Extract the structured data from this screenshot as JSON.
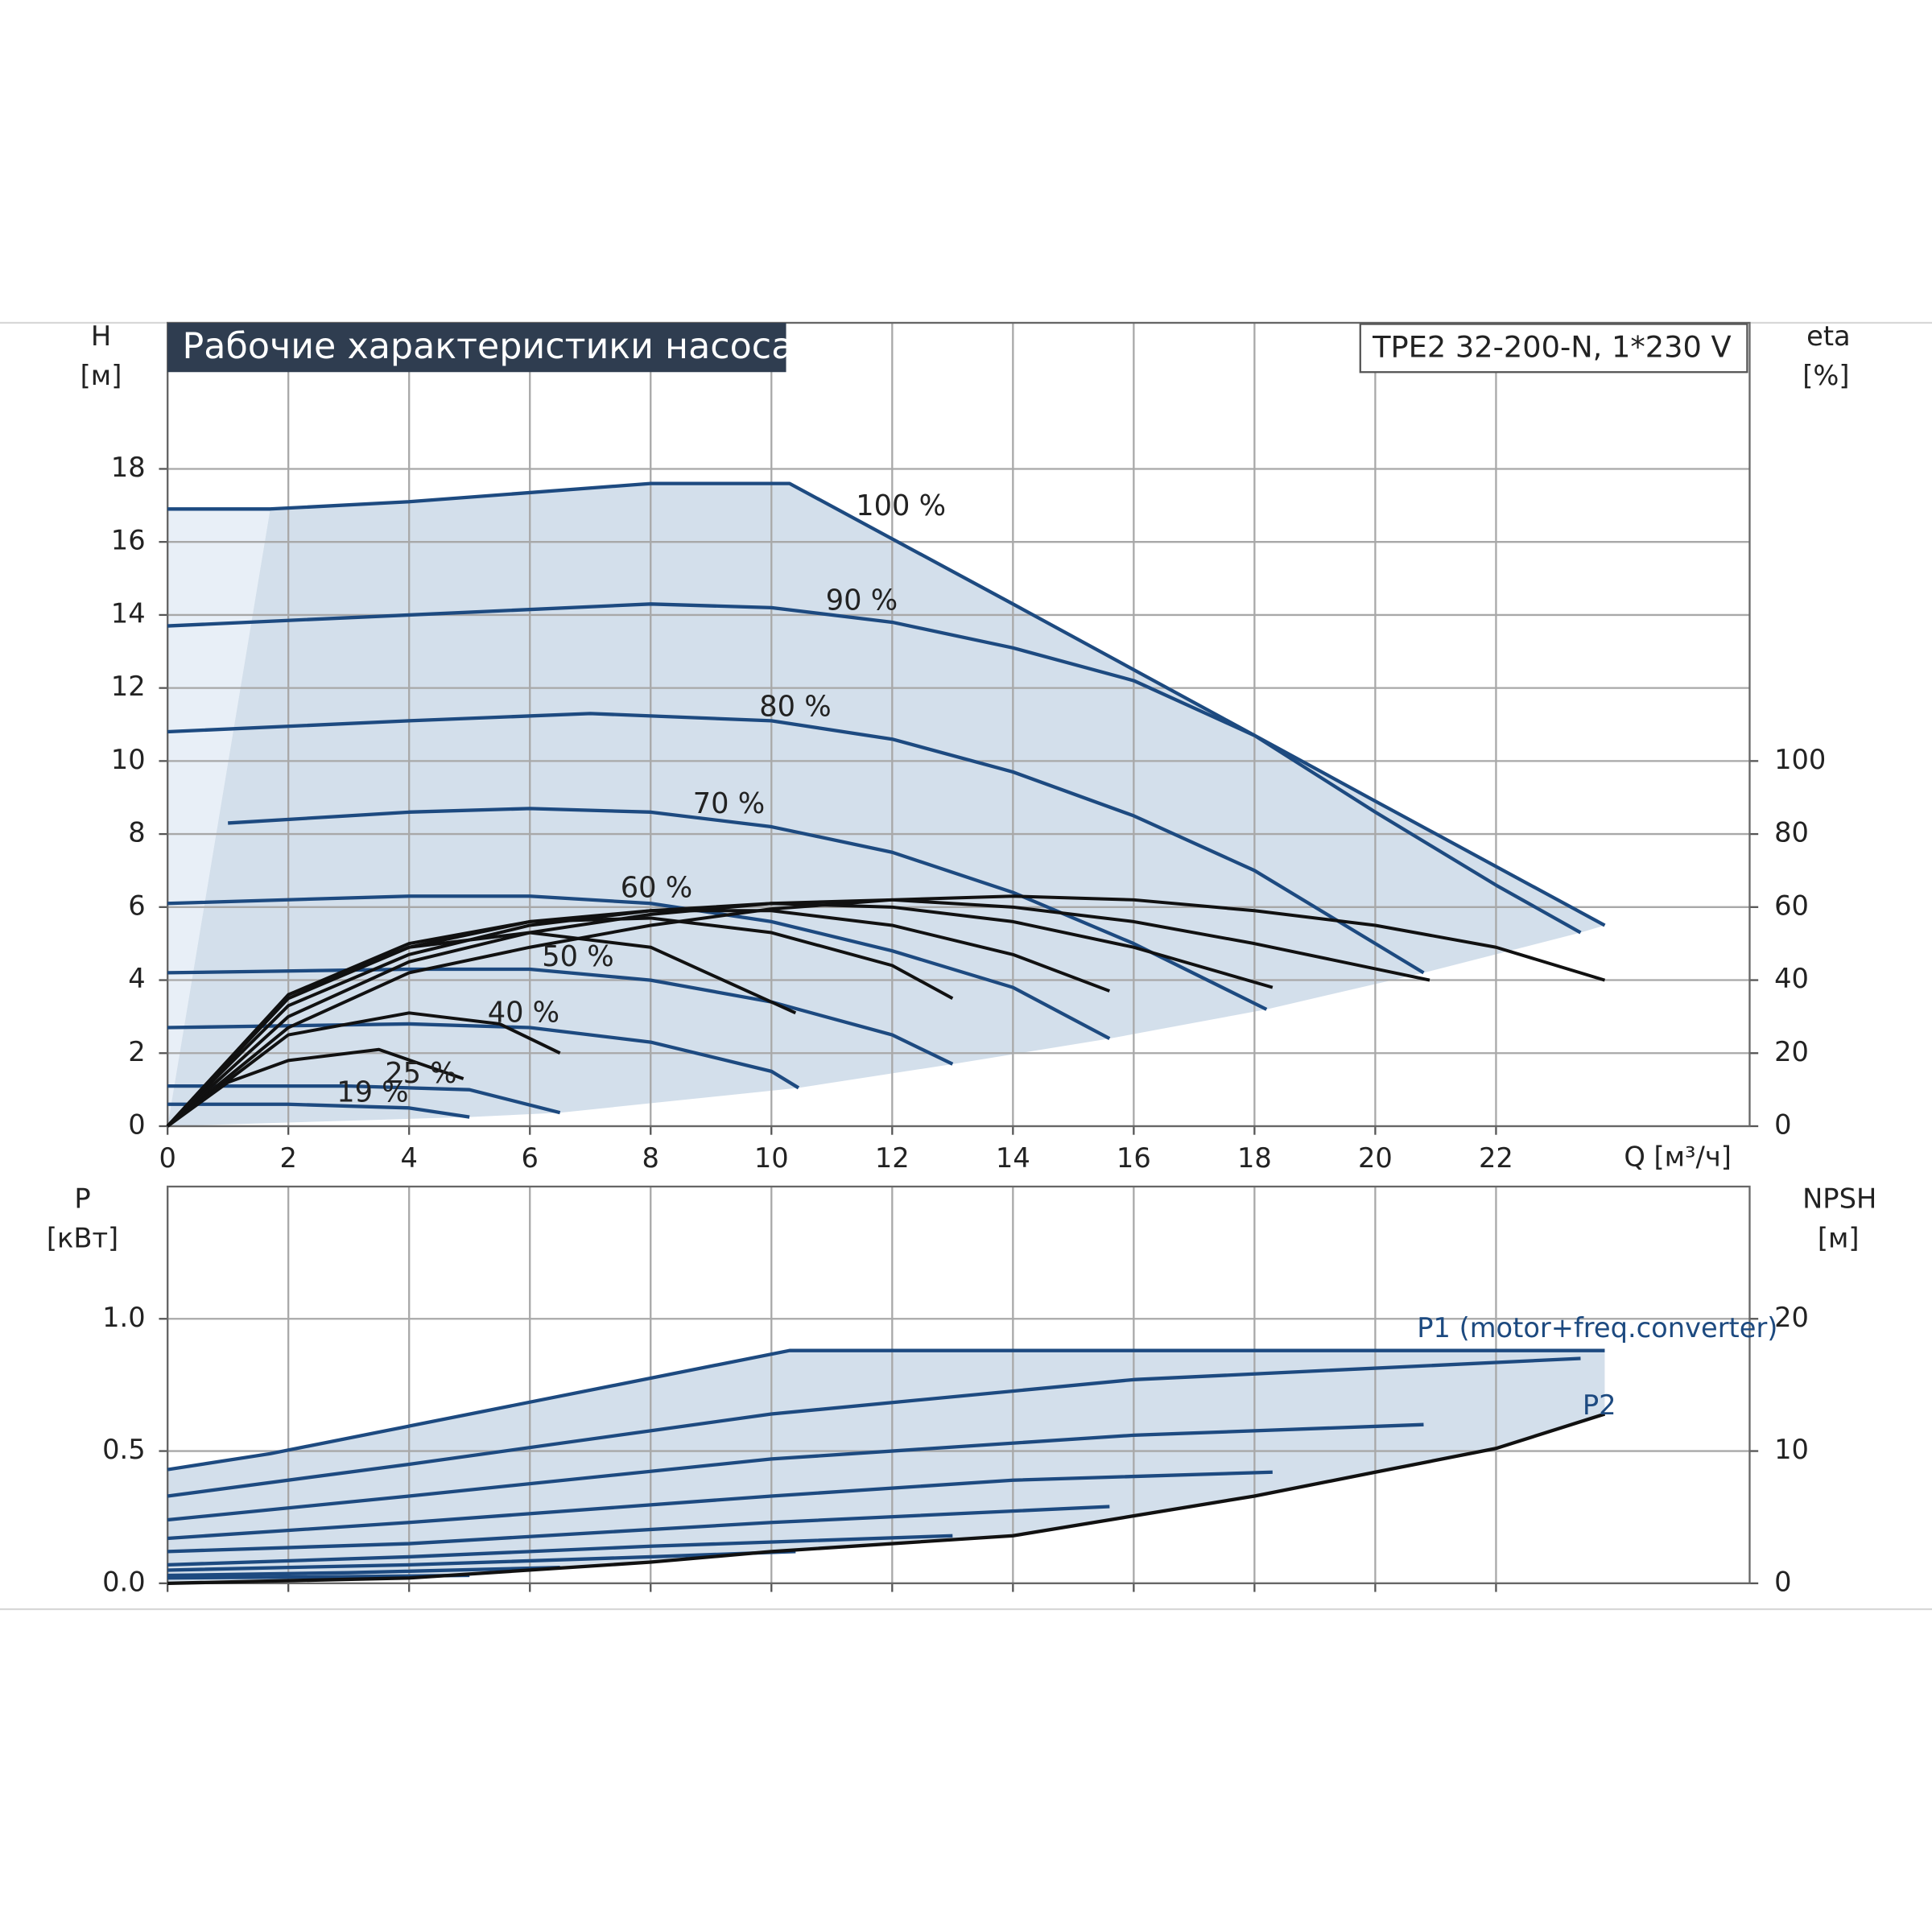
{
  "chart_data": [
    {
      "type": "line",
      "title": "Рабочие характеристики насоса",
      "product": "TPE2 32-200-N, 1*230 V",
      "y_label": "H",
      "y_unit": "[м]",
      "y2_label": "eta",
      "y2_unit": "[%]",
      "x_label": "Q [м³/ч]",
      "xlim": [
        0,
        26.2
      ],
      "xticks": [
        0,
        2,
        4,
        6,
        8,
        10,
        12,
        14,
        16,
        18,
        20,
        22
      ],
      "ylim": [
        0,
        22
      ],
      "yticks": [
        0,
        2,
        4,
        6,
        8,
        10,
        12,
        14,
        16,
        18
      ],
      "y2lim": [
        0,
        220
      ],
      "y2ticks": [
        0,
        20,
        40,
        60,
        80,
        100
      ],
      "grid": true,
      "series": [
        {
          "name": "100 %",
          "color": "#1d4a80",
          "x": [
            0,
            1.7,
            4,
            8,
            10.3,
            14,
            20,
            23.8
          ],
          "values": [
            16.9,
            16.9,
            17.1,
            17.6,
            17.6,
            14.3,
            8.9,
            5.5
          ]
        },
        {
          "name": "90 %",
          "color": "#1d4a80",
          "x": [
            0,
            4,
            8,
            10,
            12,
            14,
            16,
            18,
            20,
            22,
            23.4
          ],
          "values": [
            13.7,
            14,
            14.3,
            14.2,
            13.8,
            13.1,
            12.2,
            10.7,
            8.6,
            6.6,
            5.3
          ]
        },
        {
          "name": "80 %",
          "color": "#1d4a80",
          "x": [
            0,
            4,
            7,
            10,
            12,
            14,
            16,
            18,
            20.8
          ],
          "values": [
            10.8,
            11.1,
            11.3,
            11.1,
            10.6,
            9.7,
            8.5,
            7,
            4.2
          ]
        },
        {
          "name": "70 %",
          "color": "#1d4a80",
          "x": [
            1,
            4,
            6,
            8,
            10,
            12,
            14,
            16,
            18.2
          ],
          "values": [
            8.3,
            8.6,
            8.7,
            8.6,
            8.2,
            7.5,
            6.4,
            5,
            3.2
          ]
        },
        {
          "name": "60 %",
          "color": "#1d4a80",
          "x": [
            0,
            4,
            6,
            8,
            10,
            12,
            14,
            15.6
          ],
          "values": [
            6.1,
            6.3,
            6.3,
            6.1,
            5.6,
            4.8,
            3.8,
            2.4
          ]
        },
        {
          "name": "50 %",
          "color": "#1d4a80",
          "x": [
            0,
            4,
            6,
            8,
            10,
            12,
            13
          ],
          "values": [
            4.2,
            4.3,
            4.3,
            4,
            3.4,
            2.5,
            1.7
          ]
        },
        {
          "name": "40 %",
          "color": "#1d4a80",
          "x": [
            0,
            4,
            6,
            8,
            10,
            10.45
          ],
          "values": [
            2.7,
            2.8,
            2.7,
            2.3,
            1.5,
            1.05
          ]
        },
        {
          "name": "25 %",
          "color": "#1d4a80",
          "x": [
            0,
            3,
            5,
            6.5
          ],
          "values": [
            1.1,
            1.1,
            1,
            0.37
          ]
        },
        {
          "name": "19 %",
          "color": "#1d4a80",
          "x": [
            0,
            2,
            4,
            5
          ],
          "values": [
            0.6,
            0.6,
            0.5,
            0.25
          ]
        },
        {
          "color": "#111111",
          "axis": "y2",
          "x": [
            0,
            2,
            4,
            6,
            8,
            10,
            12,
            14,
            16,
            18,
            20,
            22,
            23.8
          ],
          "values": [
            0,
            27,
            42,
            49,
            55,
            59.5,
            62,
            63,
            62,
            59,
            55,
            49,
            40
          ]
        },
        {
          "color": "#111111",
          "axis": "y2",
          "x": [
            0,
            2,
            4,
            6,
            8,
            10,
            12,
            14,
            16,
            18,
            20.9
          ],
          "values": [
            0,
            30,
            45,
            53,
            58,
            61,
            62,
            60,
            56,
            50,
            40
          ]
        },
        {
          "color": "#111111",
          "axis": "y2",
          "x": [
            0,
            2,
            4,
            6,
            8,
            10,
            12,
            14,
            16,
            18.3
          ],
          "values": [
            0,
            33,
            47,
            55,
            59,
            61,
            60,
            56,
            49,
            38
          ]
        },
        {
          "color": "#111111",
          "axis": "y2",
          "x": [
            0,
            2,
            4,
            6,
            8,
            10,
            12,
            14,
            15.6
          ],
          "values": [
            0,
            35,
            49,
            56,
            59,
            59,
            55,
            47,
            37
          ]
        },
        {
          "color": "#111111",
          "axis": "y2",
          "x": [
            0,
            2,
            4,
            6,
            8,
            10,
            12,
            13
          ],
          "values": [
            0,
            36,
            50,
            56,
            57,
            53,
            44,
            35
          ]
        },
        {
          "color": "#111111",
          "axis": "y2",
          "x": [
            0,
            2,
            4,
            6,
            8,
            10.4
          ],
          "values": [
            0,
            36,
            49,
            53,
            49,
            31
          ]
        },
        {
          "color": "#111111",
          "axis": "y2",
          "x": [
            0,
            2,
            4,
            5.5,
            6.5
          ],
          "values": [
            0,
            25,
            31,
            28,
            20
          ]
        },
        {
          "color": "#111111",
          "axis": "y2",
          "x": [
            0,
            1,
            2,
            3.5,
            4.9
          ],
          "values": [
            0,
            12,
            18,
            21,
            13
          ]
        }
      ]
    },
    {
      "type": "line",
      "y_label": "P",
      "y_unit": "[кВт]",
      "y2_label": "NPSH",
      "y2_unit": "[м]",
      "ylim": [
        0,
        1.5
      ],
      "yticks": [
        {
          "value": 0,
          "label": "0.0"
        },
        {
          "value": 0.5,
          "label": "0.5"
        },
        {
          "value": 1,
          "label": "1.0"
        }
      ],
      "y2lim": [
        0,
        30
      ],
      "y2ticks": [
        0,
        10,
        20
      ],
      "grid": true,
      "series": [
        {
          "name": "P1 (motor+freq.converter)",
          "color": "#1d4a80",
          "x": [
            0,
            1.7,
            10.3,
            23.8
          ],
          "values": [
            0.43,
            0.49,
            0.88,
            0.88
          ]
        },
        {
          "color": "#1d4a80",
          "x": [
            0,
            4,
            10,
            16,
            23.4
          ],
          "values": [
            0.33,
            0.45,
            0.64,
            0.77,
            0.85
          ]
        },
        {
          "color": "#1d4a80",
          "x": [
            0,
            4,
            10,
            16,
            20.8
          ],
          "values": [
            0.24,
            0.33,
            0.47,
            0.56,
            0.6
          ]
        },
        {
          "color": "#1d4a80",
          "x": [
            0,
            4,
            10,
            14,
            18.3
          ],
          "values": [
            0.17,
            0.23,
            0.33,
            0.39,
            0.42
          ]
        },
        {
          "color": "#1d4a80",
          "x": [
            0,
            4,
            10,
            15.6
          ],
          "values": [
            0.12,
            0.15,
            0.23,
            0.29
          ]
        },
        {
          "color": "#1d4a80",
          "x": [
            0,
            4,
            8,
            13
          ],
          "values": [
            0.07,
            0.1,
            0.14,
            0.18
          ]
        },
        {
          "color": "#1d4a80",
          "x": [
            0,
            4,
            8,
            10.4
          ],
          "values": [
            0.05,
            0.07,
            0.1,
            0.12
          ]
        },
        {
          "color": "#1d4a80",
          "x": [
            0,
            3,
            6.5
          ],
          "values": [
            0.03,
            0.04,
            0.06
          ]
        },
        {
          "color": "#1d4a80",
          "x": [
            0,
            3,
            5
          ],
          "values": [
            0.02,
            0.025,
            0.03
          ]
        },
        {
          "name": "P2",
          "color": "#111111",
          "x": [
            0,
            4,
            8,
            10,
            14,
            18,
            20,
            22,
            23.8
          ],
          "values": [
            0,
            0.02,
            0.08,
            0.12,
            0.18,
            0.33,
            0.42,
            0.51,
            0.64
          ]
        }
      ]
    }
  ]
}
